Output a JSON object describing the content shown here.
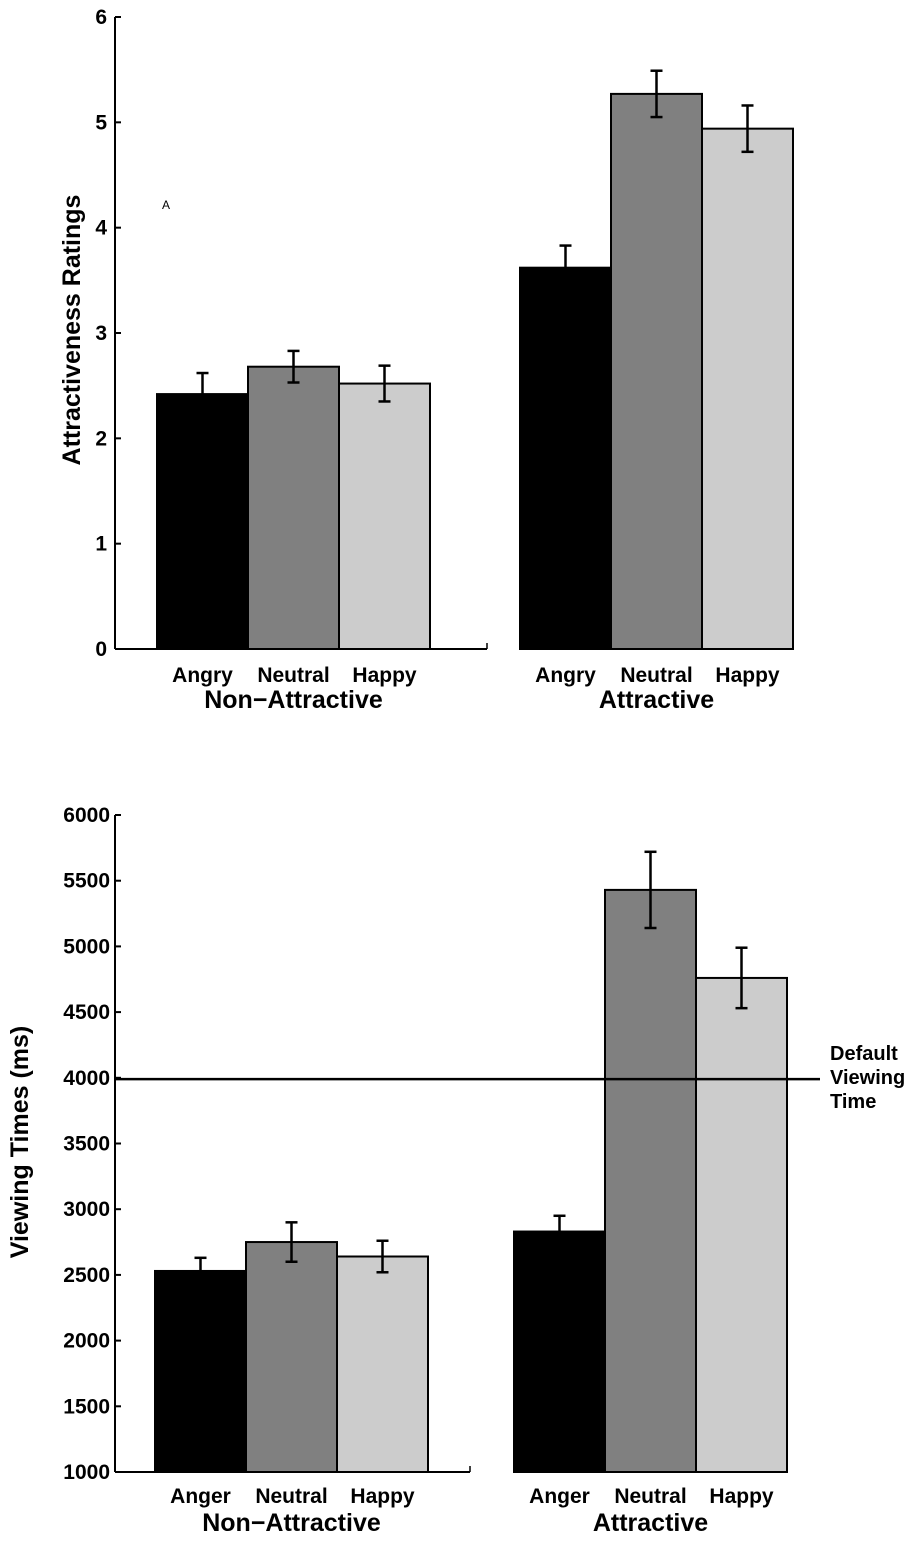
{
  "chart_data": [
    {
      "type": "bar",
      "ylabel": "Attractiveness Ratings",
      "ylim": [
        0,
        6
      ],
      "yticks": [
        0,
        1,
        2,
        3,
        4,
        5,
        6
      ],
      "annotation": "A",
      "groups": [
        {
          "label": "Non−Attractive",
          "categories": [
            "Angry",
            "Neutral",
            "Happy"
          ]
        },
        {
          "label": "Attractive",
          "categories": [
            "Angry",
            "Neutral",
            "Happy"
          ]
        }
      ],
      "series": [
        {
          "color": "#000000",
          "values": [
            2.42,
            3.62
          ],
          "errors": [
            0.2,
            0.21
          ]
        },
        {
          "color": "#808080",
          "values": [
            2.68,
            5.27
          ],
          "errors": [
            0.15,
            0.22
          ]
        },
        {
          "color": "#cccccc",
          "values": [
            2.52,
            4.94
          ],
          "errors": [
            0.17,
            0.22
          ]
        }
      ]
    },
    {
      "type": "bar",
      "ylabel": "Viewing Times (ms)",
      "ylim": [
        1000,
        6000
      ],
      "yticks": [
        1000,
        1500,
        2000,
        2500,
        3000,
        3500,
        4000,
        4500,
        5000,
        5500,
        6000
      ],
      "groups": [
        {
          "label": "Non−Attractive",
          "categories": [
            "Anger",
            "Neutral",
            "Happy"
          ]
        },
        {
          "label": "Attractive",
          "categories": [
            "Anger",
            "Neutral",
            "Happy"
          ]
        }
      ],
      "series": [
        {
          "color": "#000000",
          "values": [
            2530,
            2830
          ],
          "errors": [
            100,
            120
          ]
        },
        {
          "color": "#808080",
          "values": [
            2750,
            5430
          ],
          "errors": [
            150,
            290
          ]
        },
        {
          "color": "#cccccc",
          "values": [
            2640,
            4760
          ],
          "errors": [
            120,
            230
          ]
        }
      ],
      "reference_line": {
        "value": 3990,
        "label_lines": [
          "Default",
          "Viewing",
          "Time"
        ]
      }
    }
  ]
}
